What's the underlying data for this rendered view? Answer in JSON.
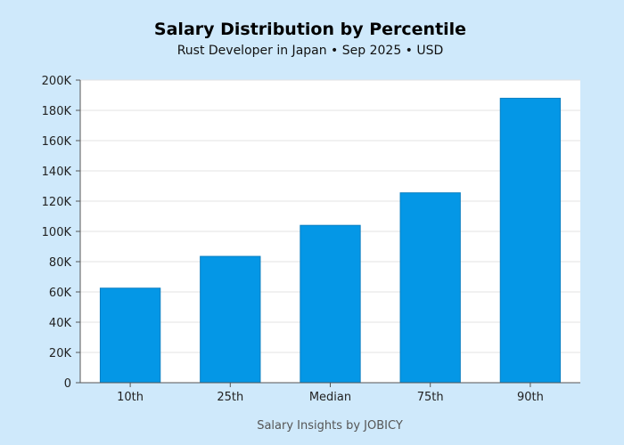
{
  "chart_data": {
    "type": "bar",
    "title": "Salary Distribution by Percentile",
    "subtitle": "Rust Developer in Japan • Sep 2025 • USD",
    "categories": [
      "10th",
      "25th",
      "Median",
      "75th",
      "90th"
    ],
    "values": [
      62500,
      83500,
      104000,
      125500,
      188000
    ],
    "ylim": [
      0,
      200000
    ],
    "yticks": [
      0,
      20000,
      40000,
      60000,
      80000,
      100000,
      120000,
      140000,
      160000,
      180000,
      200000
    ],
    "ytick_labels": [
      "0",
      "20K",
      "40K",
      "60K",
      "80K",
      "100K",
      "120K",
      "140K",
      "160K",
      "180K",
      "200K"
    ],
    "xlabel": "",
    "ylabel": "",
    "grid": true,
    "legend": "none",
    "bar_color": "#0497e6",
    "background_color": "#cfe9fb"
  },
  "footer": "Salary Insights by JOBICY"
}
